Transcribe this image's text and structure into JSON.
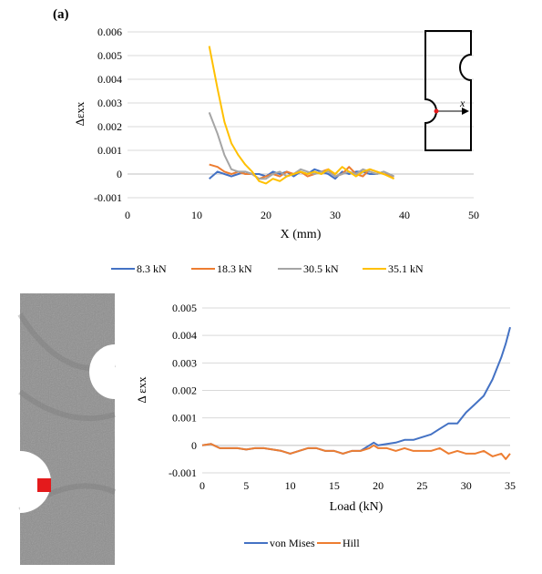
{
  "panel_label": "(a)",
  "colors": {
    "s8_3": "#4472C4",
    "s18_3": "#ED7D31",
    "s30_5": "#A5A5A5",
    "s35_1": "#FFC000",
    "von_mises": "#4472C4",
    "hill": "#ED7D31",
    "marker": "#e41a1c"
  },
  "chart_data": [
    {
      "type": "line",
      "xlabel": "X (mm)",
      "ylabel": "Δεxx",
      "xlim": [
        0,
        50
      ],
      "ylim": [
        -0.001,
        0.006
      ],
      "xticks": [
        "0",
        "10",
        "20",
        "30",
        "40",
        "50"
      ],
      "yticks": [
        "-0.001",
        "0",
        "0.001",
        "0.002",
        "0.003",
        "0.004",
        "0.005",
        "0.006"
      ],
      "grid": true,
      "legend": "bottom",
      "inset_x_label": "x",
      "series": [
        {
          "name": "8.3 kN",
          "x": [
            11.8,
            13,
            14,
            15,
            16,
            17,
            18,
            19,
            20,
            21,
            22,
            23,
            24,
            25,
            26,
            27,
            28,
            29,
            30,
            31,
            32,
            33,
            34,
            35,
            36,
            37,
            38.5
          ],
          "values": [
            -0.0002,
            0.0001,
            0.0,
            -0.0001,
            0.0,
            0.0001,
            0.0,
            0.0,
            -0.0001,
            0.0001,
            0.0,
            0.0001,
            -0.0001,
            0.0001,
            0.0,
            0.0002,
            0.0001,
            0.0,
            -0.0002,
            0.0001,
            0.0,
            0.0001,
            0.0001,
            0.0,
            0.0,
            0.0001,
            -0.0001
          ]
        },
        {
          "name": "18.3 kN",
          "x": [
            11.8,
            13,
            14,
            15,
            16,
            17,
            18,
            19,
            20,
            21,
            22,
            23,
            24,
            25,
            26,
            27,
            28,
            29,
            30,
            31,
            32,
            33,
            34,
            35,
            36,
            37,
            38.5
          ],
          "values": [
            0.0004,
            0.0003,
            0.0001,
            0.0,
            0.0001,
            0.0,
            0.0,
            -0.0002,
            -0.0001,
            0.0,
            -0.0001,
            0.0001,
            0.0,
            0.0001,
            -0.0001,
            0.0,
            0.0001,
            0.0002,
            -0.0001,
            0.0,
            0.0003,
            0.0,
            -0.0001,
            0.0002,
            0.0001,
            0.0,
            -0.0001
          ]
        },
        {
          "name": "30.5 kN",
          "x": [
            11.8,
            13,
            14,
            15,
            16,
            17,
            18,
            19,
            20,
            21,
            22,
            23,
            24,
            25,
            26,
            27,
            28,
            29,
            30,
            31,
            32,
            33,
            34,
            35,
            36,
            37,
            38.5
          ],
          "values": [
            0.0026,
            0.0017,
            0.0008,
            0.0002,
            0.0001,
            0.0001,
            0.0,
            -0.0002,
            -0.0002,
            0.0,
            0.0001,
            -0.0001,
            0.0,
            0.0002,
            0.0001,
            0.0,
            0.0001,
            0.0001,
            -0.0001,
            0.0,
            0.0001,
            0.0,
            0.0002,
            0.0001,
            0.0,
            0.0001,
            -0.0001
          ]
        },
        {
          "name": "35.1 kN",
          "x": [
            11.8,
            13,
            14,
            15,
            16,
            17,
            18,
            19,
            20,
            21,
            22,
            23,
            24,
            25,
            26,
            27,
            28,
            29,
            30,
            31,
            32,
            33,
            34,
            35,
            36,
            37,
            38.5
          ],
          "values": [
            0.0054,
            0.0036,
            0.0022,
            0.0013,
            0.0008,
            0.0004,
            0.0001,
            -0.0003,
            -0.0004,
            -0.0002,
            -0.0003,
            -0.0001,
            0.0,
            0.0001,
            0.0,
            0.0001,
            0.0,
            0.0002,
            0.0,
            0.0003,
            0.0001,
            -0.0001,
            0.0001,
            0.0002,
            0.0001,
            0.0,
            -0.0002
          ]
        }
      ]
    },
    {
      "type": "line",
      "xlabel": "Load (kN)",
      "ylabel": "Δ εxx",
      "xlim": [
        0,
        35
      ],
      "ylim": [
        -0.001,
        0.005
      ],
      "xticks": [
        "0",
        "5",
        "10",
        "15",
        "20",
        "25",
        "30",
        "35"
      ],
      "yticks": [
        "-0.001",
        "0",
        "0.001",
        "0.002",
        "0.003",
        "0.004",
        "0.005"
      ],
      "grid": true,
      "legend": "bottom",
      "series": [
        {
          "name": "von Mises",
          "x": [
            0,
            1,
            2,
            3,
            4,
            5,
            6,
            7,
            8,
            9,
            10,
            11,
            12,
            13,
            14,
            15,
            16,
            17,
            18,
            19,
            19.5,
            20,
            21,
            22,
            23,
            24,
            25,
            26,
            27,
            28,
            29,
            30,
            31,
            32,
            33,
            34,
            34.5,
            35
          ],
          "values": [
            0,
            5e-05,
            -0.0001,
            -0.0001,
            -0.0001,
            -0.00015,
            -0.0001,
            -0.0001,
            -0.00015,
            -0.0002,
            -0.0003,
            -0.0002,
            -0.0001,
            -0.0001,
            -0.0002,
            -0.0002,
            -0.0003,
            -0.0002,
            -0.0002,
            0.0,
            0.0001,
            0.0,
            5e-05,
            0.0001,
            0.0002,
            0.0002,
            0.0003,
            0.0004,
            0.0006,
            0.0008,
            0.0008,
            0.0012,
            0.0015,
            0.0018,
            0.0024,
            0.0032,
            0.0037,
            0.0043
          ]
        },
        {
          "name": "Hill",
          "x": [
            0,
            1,
            2,
            3,
            4,
            5,
            6,
            7,
            8,
            9,
            10,
            11,
            12,
            13,
            14,
            15,
            16,
            17,
            18,
            19,
            19.5,
            20,
            21,
            22,
            23,
            24,
            25,
            26,
            27,
            28,
            29,
            30,
            31,
            32,
            33,
            34,
            34.5,
            35
          ],
          "values": [
            0,
            5e-05,
            -0.0001,
            -0.0001,
            -0.0001,
            -0.00015,
            -0.0001,
            -0.0001,
            -0.00015,
            -0.0002,
            -0.0003,
            -0.0002,
            -0.0001,
            -0.0001,
            -0.0002,
            -0.0002,
            -0.0003,
            -0.0002,
            -0.0002,
            -0.0001,
            0.0,
            -0.0001,
            -0.0001,
            -0.0002,
            -0.0001,
            -0.0002,
            -0.0002,
            -0.0002,
            -0.0001,
            -0.0003,
            -0.0002,
            -0.0003,
            -0.0003,
            -0.0002,
            -0.0004,
            -0.0003,
            -0.0005,
            -0.0003
          ]
        }
      ]
    }
  ]
}
